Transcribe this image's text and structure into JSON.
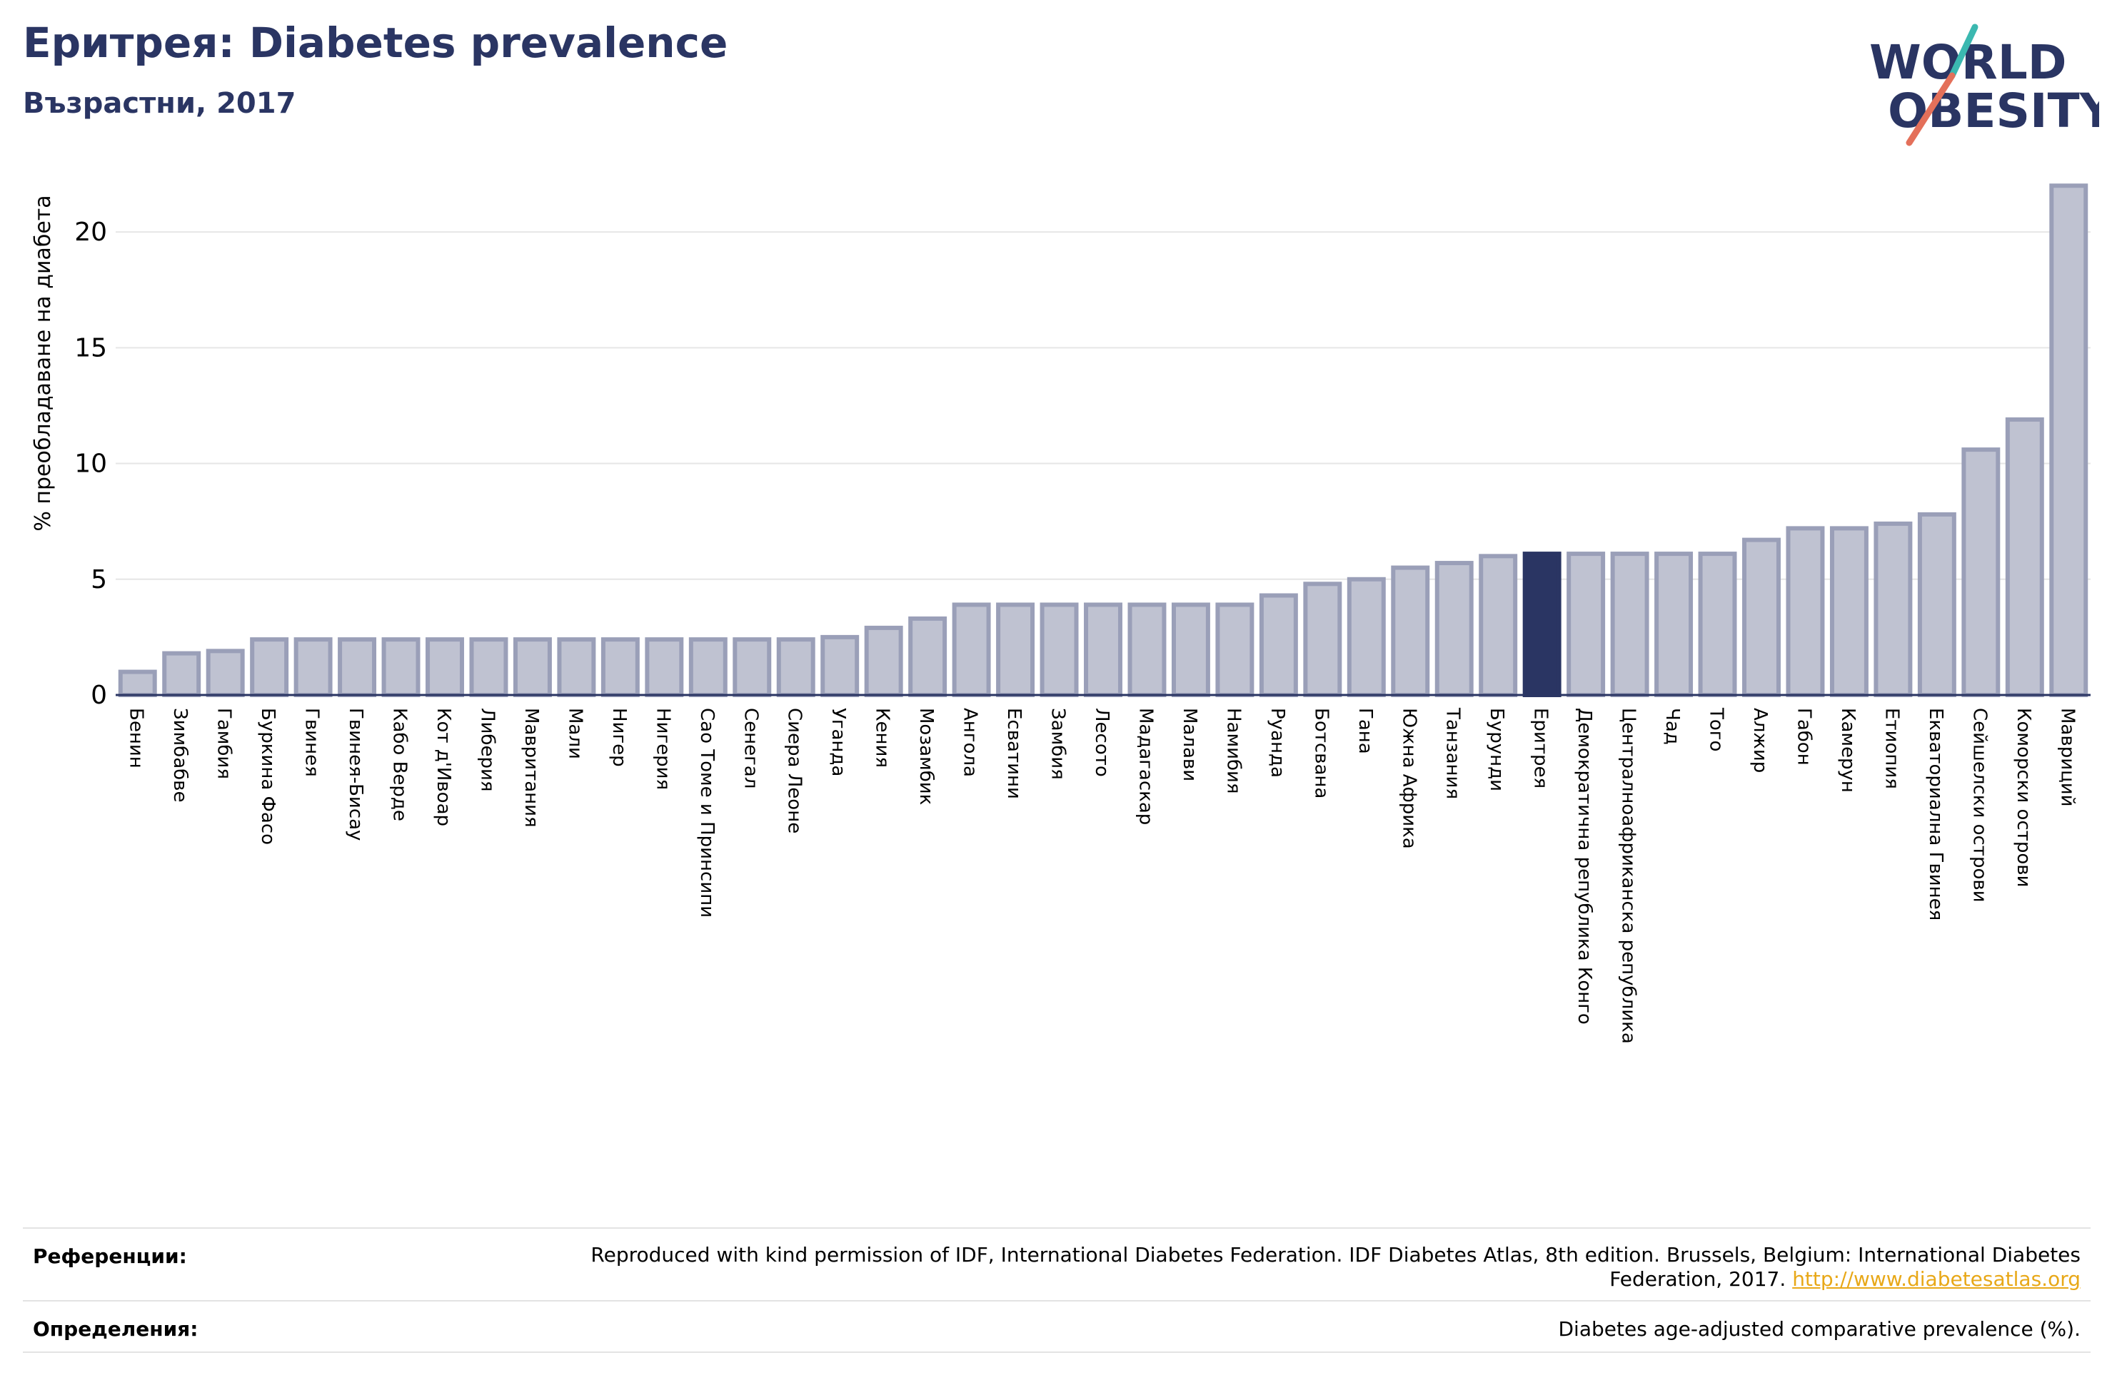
{
  "header": {
    "title": "Еритрея: Diabetes prevalence",
    "subtitle": "Възрастни, 2017"
  },
  "logo": {
    "line1": "WORLD",
    "line2": "OBESITY"
  },
  "colors": {
    "title": "#2a3563",
    "bar_fill": "#bfc2d1",
    "bar_edge": "#9a9fb8",
    "highlight": "#2a3563",
    "logo_teal": "#3bb8b0",
    "logo_coral": "#e4705a"
  },
  "chart_data": {
    "type": "bar",
    "ylabel": "% преобладаване на диабета",
    "ylim": [
      0,
      22.5
    ],
    "yticks": [
      0,
      5,
      10,
      15,
      20
    ],
    "grid": true,
    "highlight_category": "Еритрея",
    "categories": [
      "Бенин",
      "Зимбабве",
      "Гамбия",
      "Буркина Фасо",
      "Гвинея",
      "Гвинея-Бисау",
      "Кабо Верде",
      "Кот д'Ивоар",
      "Либерия",
      "Мавритания",
      "Мали",
      "Нигер",
      "Нигерия",
      "Сао Томе и Принсипи",
      "Сенегал",
      "Сиера Леоне",
      "Уганда",
      "Кения",
      "Мозамбик",
      "Ангола",
      "Есватини",
      "Замбия",
      "Лесото",
      "Мадагаскар",
      "Малави",
      "Намибия",
      "Руанда",
      "Ботсвана",
      "Гана",
      "Южна Африка",
      "Танзания",
      "Бурунди",
      "Еритрея",
      "Демократична република Конго",
      "Централноафриканска република",
      "Чад",
      "Того",
      "Алжир",
      "Габон",
      "Камерун",
      "Етиопия",
      "Екваториална Гвинея",
      "Сейшелски острови",
      "Коморски острови",
      "Мавриций"
    ],
    "values": [
      1.0,
      1.8,
      1.9,
      2.4,
      2.4,
      2.4,
      2.4,
      2.4,
      2.4,
      2.4,
      2.4,
      2.4,
      2.4,
      2.4,
      2.4,
      2.4,
      2.5,
      2.9,
      3.3,
      3.9,
      3.9,
      3.9,
      3.9,
      3.9,
      3.9,
      3.9,
      4.3,
      4.8,
      5.0,
      5.5,
      5.7,
      6.0,
      6.1,
      6.1,
      6.1,
      6.1,
      6.1,
      6.7,
      7.2,
      7.2,
      7.4,
      7.8,
      10.6,
      11.9,
      22.0
    ]
  },
  "footer": {
    "references_label": "Референции:",
    "references_text": "Reproduced with kind permission of IDF, International Diabetes Federation. IDF Diabetes Atlas, 8th edition. Brussels, Belgium: International Diabetes Federation, 2017.",
    "references_link": "http://www.diabetesatlas.org",
    "definitions_label": "Определения:",
    "definitions_text": "Diabetes age-adjusted comparative prevalence (%)."
  }
}
